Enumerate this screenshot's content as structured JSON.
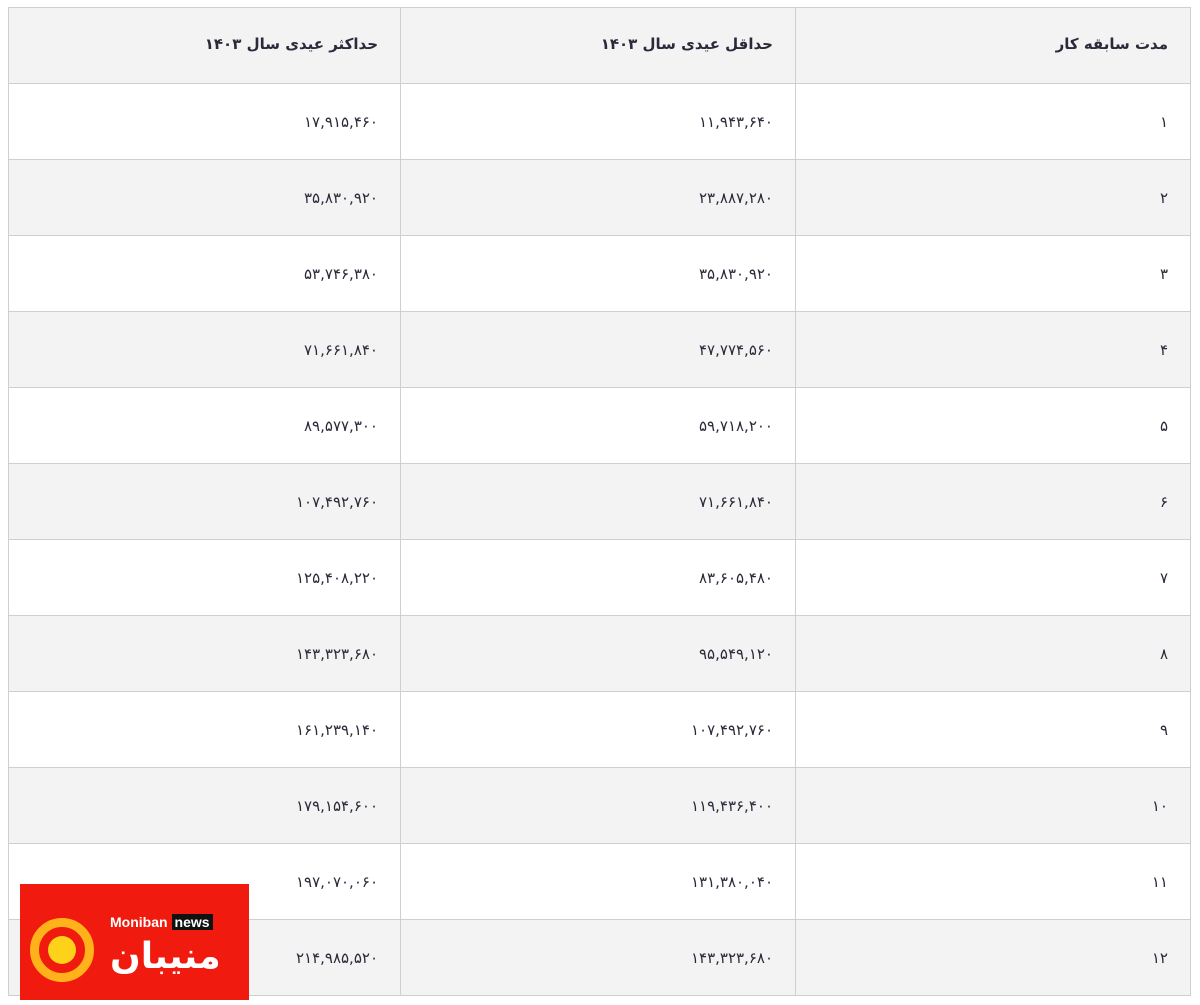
{
  "table": {
    "headers": [
      "مدت سابقه کار",
      "حداقل عیدی سال ۱۴۰۳",
      "حداکثر عیدی سال ۱۴۰۳"
    ],
    "rows": [
      [
        "۱",
        "۱۱,۹۴۳,۶۴۰",
        "۱۷,۹۱۵,۴۶۰"
      ],
      [
        "۲",
        "۲۳,۸۸۷,۲۸۰",
        "۳۵,۸۳۰,۹۲۰"
      ],
      [
        "۳",
        "۳۵,۸۳۰,۹۲۰",
        "۵۳,۷۴۶,۳۸۰"
      ],
      [
        "۴",
        "۴۷,۷۷۴,۵۶۰",
        "۷۱,۶۶۱,۸۴۰"
      ],
      [
        "۵",
        "۵۹,۷۱۸,۲۰۰",
        "۸۹,۵۷۷,۳۰۰"
      ],
      [
        "۶",
        "۷۱,۶۶۱,۸۴۰",
        "۱۰۷,۴۹۲,۷۶۰"
      ],
      [
        "۷",
        "۸۳,۶۰۵,۴۸۰",
        "۱۲۵,۴۰۸,۲۲۰"
      ],
      [
        "۸",
        "۹۵,۵۴۹,۱۲۰",
        "۱۴۳,۳۲۳,۶۸۰"
      ],
      [
        "۹",
        "۱۰۷,۴۹۲,۷۶۰",
        "۱۶۱,۲۳۹,۱۴۰"
      ],
      [
        "۱۰",
        "۱۱۹,۴۳۶,۴۰۰",
        "۱۷۹,۱۵۴,۶۰۰"
      ],
      [
        "۱۱",
        "۱۳۱,۳۸۰,۰۴۰",
        "۱۹۷,۰۷۰,۰۶۰"
      ],
      [
        "۱۲",
        "۱۴۳,۳۲۳,۶۸۰",
        "۲۱۴,۹۸۵,۵۲۰"
      ]
    ]
  },
  "logo": {
    "latin": "Moniban",
    "suffix": "news",
    "persian": "منیبان",
    "color": "#f01a0e"
  }
}
